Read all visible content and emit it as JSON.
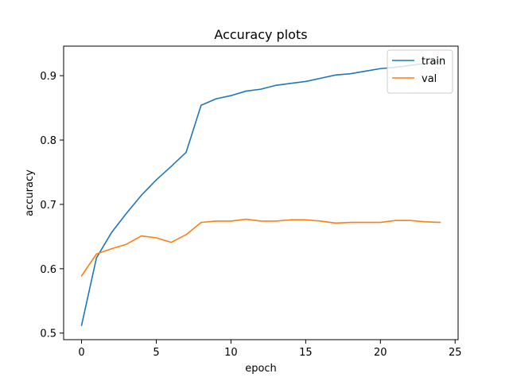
{
  "chart_data": {
    "type": "line",
    "title": "Accuracy plots",
    "xlabel": "epoch",
    "ylabel": "accuracy",
    "xlim": [
      -1.2,
      25.2
    ],
    "ylim": [
      0.4898,
      0.9459
    ],
    "x_ticks": [
      0,
      5,
      10,
      15,
      20,
      25
    ],
    "y_ticks": [
      0.5,
      0.6,
      0.7,
      0.8,
      0.9
    ],
    "grid": false,
    "legend_position": "upper right",
    "x": [
      0,
      1,
      2,
      3,
      4,
      5,
      6,
      7,
      8,
      9,
      10,
      11,
      12,
      13,
      14,
      15,
      16,
      17,
      18,
      19,
      20,
      21,
      22,
      23,
      24
    ],
    "series": [
      {
        "name": "train",
        "color": "#1f77b4",
        "values": [
          0.512,
          0.617,
          0.656,
          0.686,
          0.714,
          0.738,
          0.759,
          0.781,
          0.854,
          0.864,
          0.869,
          0.876,
          0.879,
          0.885,
          0.888,
          0.891,
          0.896,
          0.901,
          0.903,
          0.907,
          0.911,
          0.913,
          0.916,
          0.919,
          0.922
        ]
      },
      {
        "name": "val",
        "color": "#ff7f0e",
        "values": [
          0.589,
          0.623,
          0.631,
          0.638,
          0.651,
          0.648,
          0.641,
          0.653,
          0.672,
          0.674,
          0.674,
          0.677,
          0.674,
          0.674,
          0.676,
          0.676,
          0.674,
          0.671,
          0.672,
          0.672,
          0.672,
          0.675,
          0.675,
          0.673,
          0.672
        ]
      }
    ]
  }
}
